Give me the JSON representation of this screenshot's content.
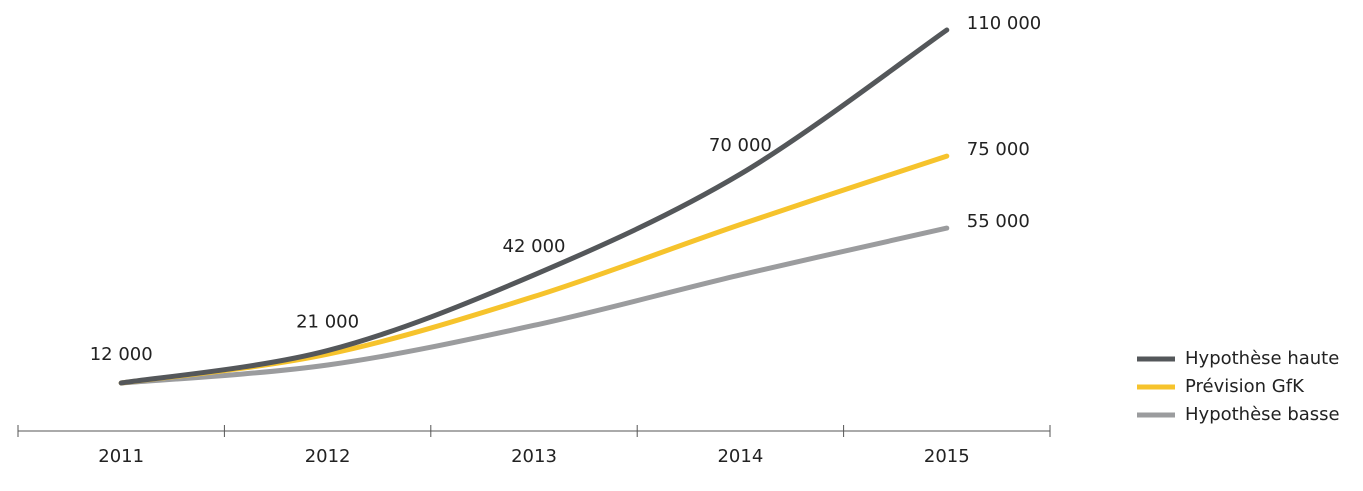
{
  "chart_data": {
    "type": "line",
    "categories": [
      "2011",
      "2012",
      "2013",
      "2014",
      "2015"
    ],
    "series": [
      {
        "name": "Hypothèse haute",
        "color": "#54575a",
        "values": [
          12000,
          21000,
          42000,
          70000,
          110000
        ],
        "value_labels": [
          "12 000",
          "21 000",
          "42 000",
          "70 000",
          "110 000"
        ]
      },
      {
        "name": "Prévision GfK",
        "color": "#f6c32c",
        "values": [
          12000,
          20000,
          36000,
          56000,
          75000
        ],
        "value_labels": [
          null,
          null,
          null,
          null,
          "75 000"
        ]
      },
      {
        "name": "Hypothèse basse",
        "color": "#9b9c9e",
        "values": [
          12000,
          17000,
          28000,
          42000,
          55000
        ],
        "value_labels": [
          null,
          null,
          null,
          null,
          "55 000"
        ]
      }
    ],
    "legend": "right"
  }
}
